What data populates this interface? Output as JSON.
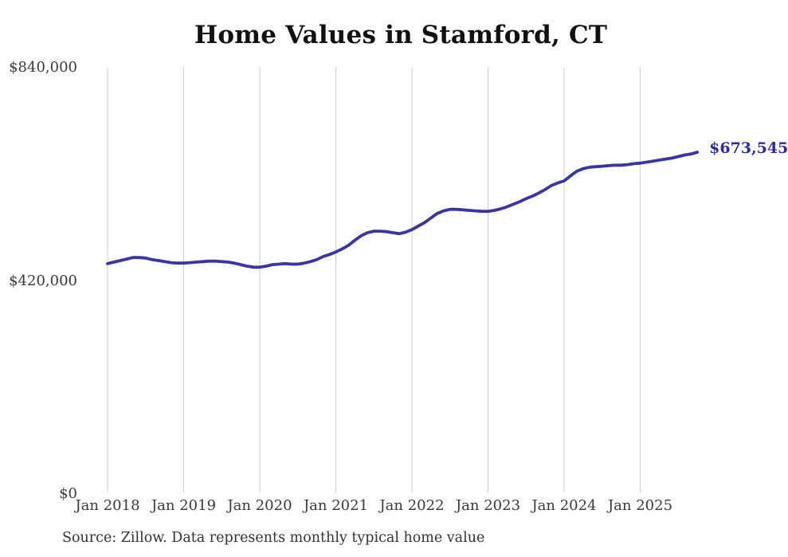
{
  "title": "Home Values in Stamford, CT",
  "source_note": "Source: Zillow. Data represents monthly typical home value",
  "end_label": "$673,545",
  "colors": {
    "line": "#3a35a0",
    "end_label": "#2e2b9c",
    "grid": "#cccccc",
    "axis_text": "#3a3a3a",
    "title_text": "#111111",
    "source_text": "#333333",
    "background": "#ffffff"
  },
  "axes": {
    "x_ticks": [
      {
        "label": "Jan 2018"
      },
      {
        "label": "Jan 2019"
      },
      {
        "label": "Jan 2020"
      },
      {
        "label": "Jan 2021"
      },
      {
        "label": "Jan 2022"
      },
      {
        "label": "Jan 2023"
      },
      {
        "label": "Jan 2024"
      },
      {
        "label": "Jan 2025"
      }
    ],
    "y_ticks": [
      {
        "label": "$840,000",
        "value": 840000
      },
      {
        "label": "$420,000",
        "value": 420000
      },
      {
        "label": "$0",
        "value": 0
      }
    ],
    "ylim": [
      0,
      840000
    ]
  },
  "chart_data": {
    "type": "line",
    "title": "Home Values in Stamford, CT",
    "xlabel": "",
    "ylabel": "",
    "ylim": [
      0,
      840000
    ],
    "y_tick_values": [
      0,
      420000,
      840000
    ],
    "grid": "vertical gridlines at each January, no horizontal gridlines",
    "legend_position": "none",
    "series_name": "Typical home value (USD, monthly)",
    "last_value_label": "$673,545",
    "x": [
      "2018-01",
      "2018-02",
      "2018-03",
      "2018-04",
      "2018-05",
      "2018-06",
      "2018-07",
      "2018-08",
      "2018-09",
      "2018-10",
      "2018-11",
      "2018-12",
      "2019-01",
      "2019-02",
      "2019-03",
      "2019-04",
      "2019-05",
      "2019-06",
      "2019-07",
      "2019-08",
      "2019-09",
      "2019-10",
      "2019-11",
      "2019-12",
      "2020-01",
      "2020-02",
      "2020-03",
      "2020-04",
      "2020-05",
      "2020-06",
      "2020-07",
      "2020-08",
      "2020-09",
      "2020-10",
      "2020-11",
      "2020-12",
      "2021-01",
      "2021-02",
      "2021-03",
      "2021-04",
      "2021-05",
      "2021-06",
      "2021-07",
      "2021-08",
      "2021-09",
      "2021-10",
      "2021-11",
      "2021-12",
      "2022-01",
      "2022-02",
      "2022-03",
      "2022-04",
      "2022-05",
      "2022-06",
      "2022-07",
      "2022-08",
      "2022-09",
      "2022-10",
      "2022-11",
      "2022-12",
      "2023-01",
      "2023-02",
      "2023-03",
      "2023-04",
      "2023-05",
      "2023-06",
      "2023-07",
      "2023-08",
      "2023-09",
      "2023-10",
      "2023-11",
      "2023-12",
      "2024-01",
      "2024-02",
      "2024-03",
      "2024-04",
      "2024-05",
      "2024-06",
      "2024-07",
      "2024-08",
      "2024-09",
      "2024-10",
      "2024-11",
      "2024-12",
      "2025-01",
      "2025-02",
      "2025-03",
      "2025-04",
      "2025-05",
      "2025-06",
      "2025-07",
      "2025-08",
      "2025-09",
      "2025-10"
    ],
    "values": [
      454000,
      457000,
      460000,
      463000,
      466000,
      466000,
      465000,
      462000,
      460000,
      458000,
      456000,
      455000,
      455000,
      456000,
      457000,
      458000,
      459000,
      459000,
      458000,
      457000,
      455000,
      452000,
      449000,
      447000,
      447000,
      449000,
      452000,
      453000,
      454000,
      453000,
      453000,
      455000,
      458000,
      462000,
      468000,
      472000,
      477000,
      483000,
      490000,
      500000,
      509000,
      515000,
      518000,
      518000,
      517000,
      515000,
      513000,
      516000,
      521000,
      528000,
      535000,
      544000,
      553000,
      558000,
      561000,
      561000,
      560000,
      559000,
      558000,
      557000,
      557000,
      559000,
      562000,
      566000,
      571000,
      576000,
      582000,
      587000,
      593000,
      600000,
      608000,
      613000,
      617000,
      627000,
      636000,
      641000,
      644000,
      645000,
      646000,
      647000,
      648000,
      648000,
      649000,
      651000,
      652000,
      654000,
      656000,
      658000,
      660000,
      662000,
      665000,
      668000,
      670000,
      673545
    ]
  }
}
